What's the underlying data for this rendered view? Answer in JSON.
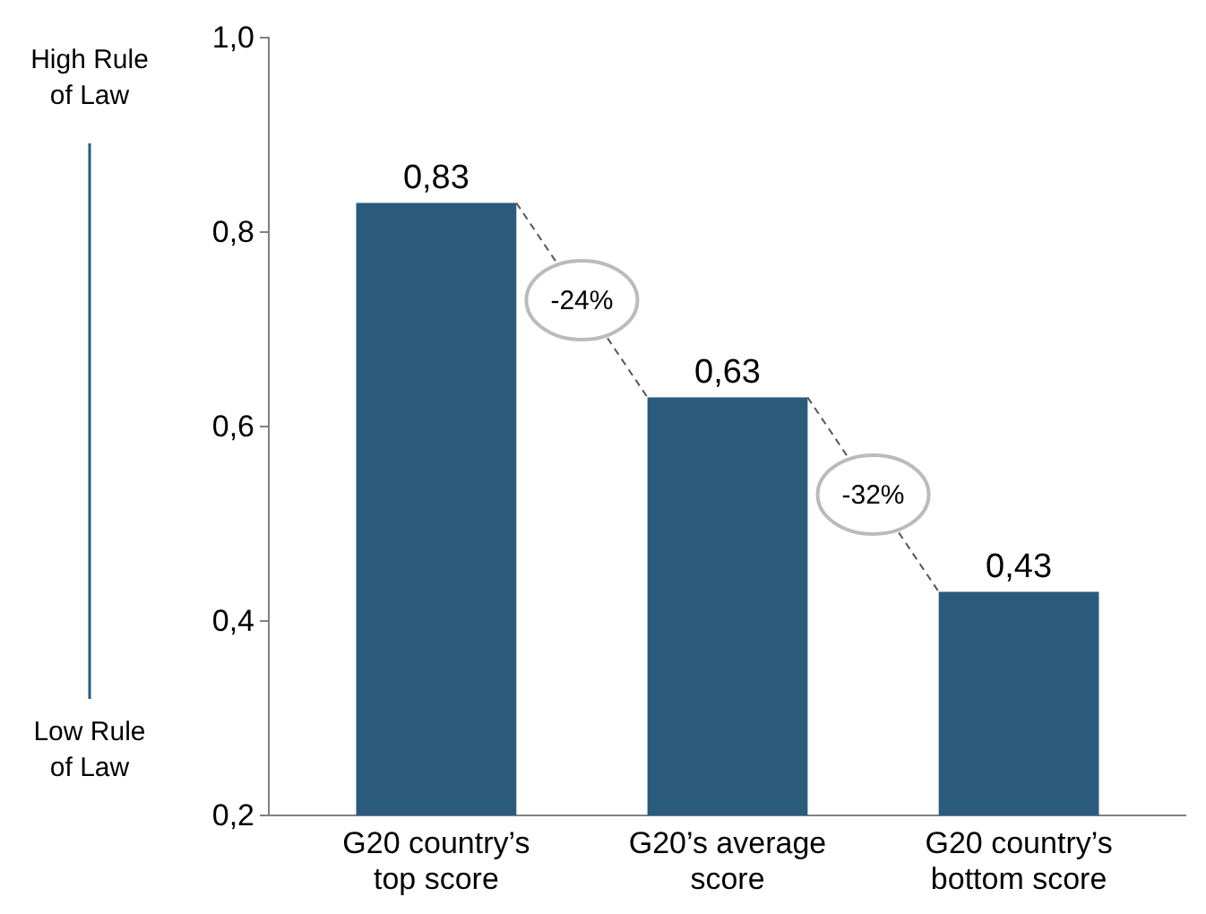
{
  "chart_data": {
    "type": "bar",
    "categories": [
      "G20 country’s top score",
      "G20’s average score",
      "G20 country’s bottom score"
    ],
    "values": [
      0.83,
      0.63,
      0.43
    ],
    "color": "#2a5b7d",
    "value_labels": [
      "0,83",
      "0,63",
      "0,43"
    ],
    "ylim": [
      0.2,
      1.0
    ],
    "yticks": [
      {
        "value": 0.2,
        "label": "0,2"
      },
      {
        "value": 0.4,
        "label": "0,4"
      },
      {
        "value": 0.6,
        "label": "0,6"
      },
      {
        "value": 0.8,
        "label": "0,8"
      },
      {
        "value": 1.0,
        "label": "1,0"
      }
    ],
    "annotations": [
      "-24%",
      "-32%",
      "High Rule of Law",
      "Low Rule of Law"
    ],
    "grid": false
  }
}
